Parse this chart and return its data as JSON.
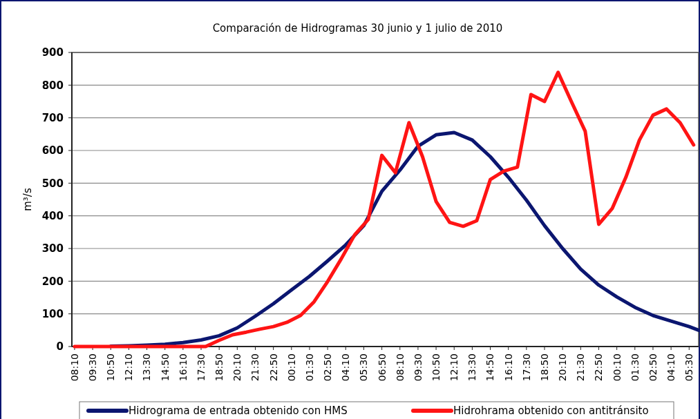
{
  "chart_data": {
    "type": "line",
    "title": "Comparación de Hidrogramas 30 junio y 1 julio de 2010",
    "ylabel": "m³/s",
    "xlim": [
      "2010-06-30T07:58",
      "2010-07-02T06:12"
    ],
    "ylim": [
      0,
      900
    ],
    "yticks": [
      0,
      100,
      200,
      300,
      400,
      500,
      600,
      700,
      800,
      900
    ],
    "xticks": [
      {
        "value": "2010-06-30T08:10",
        "label": "08:10"
      },
      {
        "value": "2010-06-30T09:30",
        "label": "09:30"
      },
      {
        "value": "2010-06-30T10:50",
        "label": "10:50"
      },
      {
        "value": "2010-06-30T12:10",
        "label": "12:10"
      },
      {
        "value": "2010-06-30T13:30",
        "label": "13:30"
      },
      {
        "value": "2010-06-30T14:50",
        "label": "14:50"
      },
      {
        "value": "2010-06-30T16:10",
        "label": "16:10"
      },
      {
        "value": "2010-06-30T17:30",
        "label": "17:30"
      },
      {
        "value": "2010-06-30T18:50",
        "label": "18:50"
      },
      {
        "value": "2010-06-30T20:10",
        "label": "20:10"
      },
      {
        "value": "2010-06-30T21:30",
        "label": "21:30"
      },
      {
        "value": "2010-06-30T22:50",
        "label": "22:50"
      },
      {
        "value": "2010-07-01T00:10",
        "label": "00:10"
      },
      {
        "value": "2010-07-01T01:30",
        "label": "01:30"
      },
      {
        "value": "2010-07-01T02:50",
        "label": "02:50"
      },
      {
        "value": "2010-07-01T04:10",
        "label": "04:10"
      },
      {
        "value": "2010-07-01T05:30",
        "label": "05:30"
      },
      {
        "value": "2010-07-01T06:50",
        "label": "06:50"
      },
      {
        "value": "2010-07-01T08:10",
        "label": "08:10"
      },
      {
        "value": "2010-07-01T09:30",
        "label": "09:30"
      },
      {
        "value": "2010-07-01T10:50",
        "label": "10:50"
      },
      {
        "value": "2010-07-01T12:10",
        "label": "12:10"
      },
      {
        "value": "2010-07-01T13:30",
        "label": "13:30"
      },
      {
        "value": "2010-07-01T14:50",
        "label": "14:50"
      },
      {
        "value": "2010-07-01T16:10",
        "label": "16:10"
      },
      {
        "value": "2010-07-01T17:30",
        "label": "17:30"
      },
      {
        "value": "2010-07-01T18:50",
        "label": "18:50"
      },
      {
        "value": "2010-07-01T20:10",
        "label": "20:10"
      },
      {
        "value": "2010-07-01T21:30",
        "label": "21:30"
      },
      {
        "value": "2010-07-01T22:50",
        "label": "22:50"
      },
      {
        "value": "2010-07-02T00:10",
        "label": "00:10"
      },
      {
        "value": "2010-07-02T01:30",
        "label": "01:30"
      },
      {
        "value": "2010-07-02T02:50",
        "label": "02:50"
      },
      {
        "value": "2010-07-02T04:10",
        "label": "04:10"
      },
      {
        "value": "2010-07-02T05:30",
        "label": "05:30"
      }
    ],
    "grid": "y",
    "legend": "bottom",
    "marker": "none",
    "line_style": "solid",
    "series": [
      {
        "name": "Hidrograma de entrada obtenido con HMS",
        "color": "#0b1670",
        "x": [
          "2010-06-30T10:50",
          "2010-06-30T12:10",
          "2010-06-30T13:30",
          "2010-06-30T14:50",
          "2010-06-30T16:10",
          "2010-06-30T17:30",
          "2010-06-30T18:50",
          "2010-06-30T20:10",
          "2010-06-30T21:30",
          "2010-06-30T22:50",
          "2010-07-01T00:10",
          "2010-07-01T01:30",
          "2010-07-01T02:50",
          "2010-07-01T04:10",
          "2010-07-01T05:30",
          "2010-07-01T06:50",
          "2010-07-01T08:10",
          "2010-07-01T09:30",
          "2010-07-01T10:50",
          "2010-07-01T12:10",
          "2010-07-01T13:30",
          "2010-07-01T14:50",
          "2010-07-01T16:10",
          "2010-07-01T17:30",
          "2010-07-01T18:50",
          "2010-07-01T20:10",
          "2010-07-01T21:30",
          "2010-07-01T22:50",
          "2010-07-02T00:10",
          "2010-07-02T01:30",
          "2010-07-02T02:50",
          "2010-07-02T04:10",
          "2010-07-02T05:30",
          "2010-07-02T06:12"
        ],
        "values": [
          1,
          2,
          4,
          7,
          12,
          20,
          33,
          57,
          93,
          131,
          173,
          215,
          262,
          311,
          370,
          475,
          540,
          613,
          648,
          655,
          632,
          581,
          518,
          448,
          370,
          300,
          237,
          188,
          152,
          120,
          95,
          78,
          61,
          50
        ]
      },
      {
        "name": "Hidrohrama obtenido con antitránsito",
        "color": "#ff1414",
        "x": [
          "2010-06-30T08:10",
          "2010-06-30T08:50",
          "2010-06-30T09:50",
          "2010-06-30T10:50",
          "2010-06-30T11:50",
          "2010-06-30T12:50",
          "2010-06-30T13:50",
          "2010-06-30T14:50",
          "2010-06-30T15:50",
          "2010-06-30T16:50",
          "2010-06-30T17:50",
          "2010-06-30T18:50",
          "2010-06-30T19:50",
          "2010-06-30T20:50",
          "2010-06-30T21:50",
          "2010-06-30T22:50",
          "2010-06-30T23:50",
          "2010-07-01T00:50",
          "2010-07-01T01:50",
          "2010-07-01T02:50",
          "2010-07-01T03:50",
          "2010-07-01T04:50",
          "2010-07-01T05:50",
          "2010-07-01T06:50",
          "2010-07-01T07:50",
          "2010-07-01T08:50",
          "2010-07-01T09:50",
          "2010-07-01T10:50",
          "2010-07-01T11:50",
          "2010-07-01T12:50",
          "2010-07-01T13:50",
          "2010-07-01T14:50",
          "2010-07-01T15:50",
          "2010-07-01T16:50",
          "2010-07-01T17:50",
          "2010-07-01T18:50",
          "2010-07-01T19:50",
          "2010-07-01T20:50",
          "2010-07-01T21:50",
          "2010-07-01T22:50",
          "2010-07-01T23:50",
          "2010-07-02T00:50",
          "2010-07-02T01:50",
          "2010-07-02T02:50",
          "2010-07-02T03:50",
          "2010-07-02T04:50",
          "2010-07-02T05:50"
        ],
        "values": [
          0,
          0,
          0,
          0,
          0,
          0,
          0,
          0,
          0,
          0,
          0,
          19,
          36,
          44,
          53,
          61,
          74,
          95,
          137,
          199,
          268,
          342,
          389,
          585,
          532,
          685,
          581,
          444,
          380,
          368,
          385,
          511,
          537,
          549,
          771,
          750,
          839,
          748,
          659,
          374,
          423,
          518,
          632,
          708,
          727,
          685,
          617
        ]
      }
    ]
  }
}
